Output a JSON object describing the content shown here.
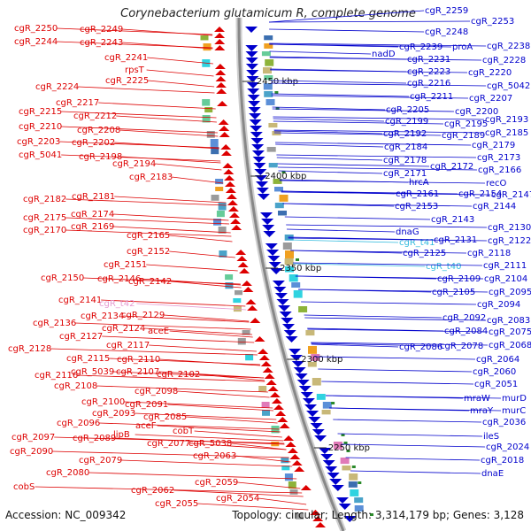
{
  "title": "Corynebacterium glutamicum R, complete genome",
  "footer": {
    "accession": "Accession: NC_009342",
    "topology": "Topology: circular; Length: 3,314,179 bp; Genes: 3,128"
  },
  "colors": {
    "forward": "#0000cc",
    "reverse": "#dd0000",
    "rna": "#33bbdd",
    "pink": "#e59ad0",
    "backbone": "#888888"
  },
  "kbp_ticks": [
    {
      "label": "2450 kbp",
      "pos": 2450
    },
    {
      "label": "2400 kbp",
      "pos": 2400
    },
    {
      "label": "2350 kbp",
      "pos": 2350
    },
    {
      "label": "2300 kbp",
      "pos": 2300
    },
    {
      "label": "2250 kbp",
      "pos": 2250
    }
  ],
  "left_labels": [
    {
      "text": "cgR_2250",
      "color": "red"
    },
    {
      "text": "cgR_2249",
      "color": "red"
    },
    {
      "text": "cgR_2244",
      "color": "red"
    },
    {
      "text": "cgR_2243",
      "color": "red"
    },
    {
      "text": "cgR_2241",
      "color": "red"
    },
    {
      "text": "rpsT",
      "color": "red"
    },
    {
      "text": "cgR_2225",
      "color": "red"
    },
    {
      "text": "cgR_2224",
      "color": "red"
    },
    {
      "text": "cgR_2217",
      "color": "red"
    },
    {
      "text": "cgR_2215",
      "color": "red"
    },
    {
      "text": "cgR_2212",
      "color": "red"
    },
    {
      "text": "cgR_2210",
      "color": "red"
    },
    {
      "text": "cgR_2208",
      "color": "red"
    },
    {
      "text": "cgR_2203",
      "color": "red"
    },
    {
      "text": "cgR_2202",
      "color": "red"
    },
    {
      "text": "cgR_5041",
      "color": "red"
    },
    {
      "text": "cgR_2198",
      "color": "red"
    },
    {
      "text": "cgR_2194",
      "color": "red"
    },
    {
      "text": "cgR_2183",
      "color": "red"
    },
    {
      "text": "cgR_2182",
      "color": "red"
    },
    {
      "text": "cgR_2181",
      "color": "red"
    },
    {
      "text": "cgR_2175",
      "color": "red"
    },
    {
      "text": "cgR_2174",
      "color": "red"
    },
    {
      "text": "cgR_2170",
      "color": "red"
    },
    {
      "text": "cgR_2169",
      "color": "red"
    },
    {
      "text": "cgR_2165",
      "color": "red"
    },
    {
      "text": "cgR_2152",
      "color": "red"
    },
    {
      "text": "cgR_2151",
      "color": "red"
    },
    {
      "text": "cgR_2150",
      "color": "red"
    },
    {
      "text": "cgR_2146",
      "color": "red"
    },
    {
      "text": "cgR_2142",
      "color": "red"
    },
    {
      "text": "cgR_2141",
      "color": "red"
    },
    {
      "text": "cgR_t42",
      "color": "pink"
    },
    {
      "text": "cgR_2136",
      "color": "red"
    },
    {
      "text": "cgR_2134",
      "color": "red"
    },
    {
      "text": "cgR_2129",
      "color": "red"
    },
    {
      "text": "cgR_2127",
      "color": "red"
    },
    {
      "text": "cgR_2124",
      "color": "red"
    },
    {
      "text": "aceE",
      "color": "red"
    },
    {
      "text": "cgR_2128",
      "color": "red"
    },
    {
      "text": "cgR_2117",
      "color": "red"
    },
    {
      "text": "cgR_2115",
      "color": "red"
    },
    {
      "text": "cgR_2110",
      "color": "red"
    },
    {
      "text": "cgR_2116",
      "color": "red"
    },
    {
      "text": "cgR_5039",
      "color": "red"
    },
    {
      "text": "cgR_2107",
      "color": "red"
    },
    {
      "text": "cgR_2102",
      "color": "red"
    },
    {
      "text": "cgR_2108",
      "color": "red"
    },
    {
      "text": "cgR_2098",
      "color": "red"
    },
    {
      "text": "cgR_2100",
      "color": "red"
    },
    {
      "text": "cgR_2091",
      "color": "red"
    },
    {
      "text": "cgR_2093",
      "color": "red"
    },
    {
      "text": "cgR_2085",
      "color": "red"
    },
    {
      "text": "cgR_2096",
      "color": "red"
    },
    {
      "text": "aceF",
      "color": "red"
    },
    {
      "text": "cobT",
      "color": "red"
    },
    {
      "text": "cgR_2097",
      "color": "red"
    },
    {
      "text": "cgR_2089",
      "color": "red"
    },
    {
      "text": "lipB",
      "color": "red"
    },
    {
      "text": "cgR_2077",
      "color": "red"
    },
    {
      "text": "cgR_5038",
      "color": "red"
    },
    {
      "text": "cgR_2090",
      "color": "red"
    },
    {
      "text": "cgR_2079",
      "color": "red"
    },
    {
      "text": "cgR_2063",
      "color": "red"
    },
    {
      "text": "cgR_2080",
      "color": "red"
    },
    {
      "text": "cobS",
      "color": "red"
    },
    {
      "text": "cgR_2059",
      "color": "red"
    },
    {
      "text": "cgR_2062",
      "color": "red"
    },
    {
      "text": "cgR_2054",
      "color": "red"
    },
    {
      "text": "cgR_2055",
      "color": "red"
    }
  ],
  "right_labels": [
    {
      "text": "cgR_2259",
      "color": "blue"
    },
    {
      "text": "cgR_2253",
      "color": "blue"
    },
    {
      "text": "cgR_2248",
      "color": "blue"
    },
    {
      "text": "cgR_2239",
      "color": "blue"
    },
    {
      "text": "proA",
      "color": "blue"
    },
    {
      "text": "cgR_2238",
      "color": "blue"
    },
    {
      "text": "nadD",
      "color": "blue"
    },
    {
      "text": "cgR_2231",
      "color": "blue"
    },
    {
      "text": "cgR_2228",
      "color": "blue"
    },
    {
      "text": "cgR_2223",
      "color": "blue"
    },
    {
      "text": "cgR_2220",
      "color": "blue"
    },
    {
      "text": "cgR_2216",
      "color": "blue"
    },
    {
      "text": "cgR_5042",
      "color": "blue"
    },
    {
      "text": "cgR_2211",
      "color": "blue"
    },
    {
      "text": "cgR_2207",
      "color": "blue"
    },
    {
      "text": "cgR_2205",
      "color": "blue"
    },
    {
      "text": "cgR_2200",
      "color": "blue"
    },
    {
      "text": "cgR_2199",
      "color": "blue"
    },
    {
      "text": "cgR_2195",
      "color": "blue"
    },
    {
      "text": "cgR_2193",
      "color": "blue"
    },
    {
      "text": "cgR_2192",
      "color": "blue"
    },
    {
      "text": "cgR_2189",
      "color": "blue"
    },
    {
      "text": "cgR_2185",
      "color": "blue"
    },
    {
      "text": "cgR_2184",
      "color": "blue"
    },
    {
      "text": "cgR_2179",
      "color": "blue"
    },
    {
      "text": "cgR_2178",
      "color": "blue"
    },
    {
      "text": "cgR_2173",
      "color": "blue"
    },
    {
      "text": "cgR_2172",
      "color": "blue"
    },
    {
      "text": "cgR_2171",
      "color": "blue"
    },
    {
      "text": "cgR_2166",
      "color": "blue"
    },
    {
      "text": "hrcA",
      "color": "blue"
    },
    {
      "text": "recO",
      "color": "blue"
    },
    {
      "text": "cgR_2161",
      "color": "blue"
    },
    {
      "text": "cgR_2154",
      "color": "blue"
    },
    {
      "text": "cgR_2147",
      "color": "blue"
    },
    {
      "text": "cgR_2153",
      "color": "blue"
    },
    {
      "text": "cgR_2144",
      "color": "blue"
    },
    {
      "text": "cgR_2143",
      "color": "blue"
    },
    {
      "text": "dnaG",
      "color": "blue"
    },
    {
      "text": "cgR_2130",
      "color": "blue"
    },
    {
      "text": "cgR_t41",
      "color": "cyan"
    },
    {
      "text": "cgR_2131",
      "color": "blue"
    },
    {
      "text": "cgR_2122",
      "color": "blue"
    },
    {
      "text": "cgR_2125",
      "color": "blue"
    },
    {
      "text": "cgR_2118",
      "color": "blue"
    },
    {
      "text": "cgR_t40",
      "color": "cyan"
    },
    {
      "text": "cgR_2111",
      "color": "blue"
    },
    {
      "text": "cgR_2109",
      "color": "blue"
    },
    {
      "text": "cgR_2104",
      "color": "blue"
    },
    {
      "text": "cgR_2105",
      "color": "blue"
    },
    {
      "text": "cgR_2095",
      "color": "blue"
    },
    {
      "text": "cgR_2094",
      "color": "blue"
    },
    {
      "text": "cgR_2092",
      "color": "blue"
    },
    {
      "text": "cgR_2083",
      "color": "blue"
    },
    {
      "text": "cgR_2084",
      "color": "blue"
    },
    {
      "text": "cgR_2075",
      "color": "blue"
    },
    {
      "text": "cgR_2086",
      "color": "blue"
    },
    {
      "text": "cgR_2078",
      "color": "blue"
    },
    {
      "text": "cgR_2068",
      "color": "blue"
    },
    {
      "text": "cgR_2064",
      "color": "blue"
    },
    {
      "text": "cgR_2060",
      "color": "blue"
    },
    {
      "text": "cgR_2051",
      "color": "blue"
    },
    {
      "text": "mraW",
      "color": "blue"
    },
    {
      "text": "murD",
      "color": "blue"
    },
    {
      "text": "mraY",
      "color": "blue"
    },
    {
      "text": "murC",
      "color": "blue"
    },
    {
      "text": "cgR_2036",
      "color": "blue"
    },
    {
      "text": "ileS",
      "color": "blue"
    },
    {
      "text": "cgR_2024",
      "color": "blue"
    },
    {
      "text": "cgR_2018",
      "color": "blue"
    },
    {
      "text": "dnaE",
      "color": "blue"
    }
  ]
}
